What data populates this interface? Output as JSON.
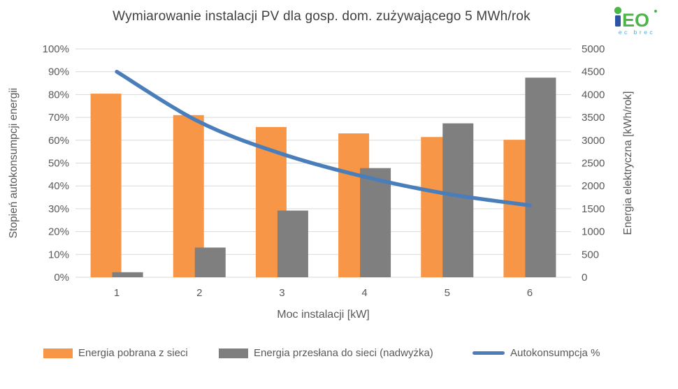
{
  "page": {
    "title": "Wymiarowanie instalacji PV dla gosp. dom. zużywającego 5 MWh/rok"
  },
  "logo": {
    "eo": "EO",
    "subtext": "ec brec",
    "blue": "#2B55A2",
    "green": "#4CB648",
    "subtext_color": "#4FA8D8"
  },
  "colors": {
    "gridline": "#D9D9D9",
    "axis_text": "#595959",
    "title_text": "#404040",
    "background": "#FFFFFF"
  },
  "chart_data": {
    "type": "bar",
    "subtype": "clustered-bars-with-smooth-line-combo",
    "title": "Wymiarowanie instalacji PV dla gosp. dom. zużywającego 5 MWh/rok",
    "categories": [
      "1",
      "2",
      "3",
      "4",
      "5",
      "6"
    ],
    "xlabel": "Moc instalacji [kW]",
    "grid": true,
    "legend_position": "bottom",
    "y_left": {
      "label": "Stopień autokonsumpcji energii",
      "min": 0,
      "max": 100,
      "step": 10,
      "unit": "%"
    },
    "y_right": {
      "label": "Energia elektryczna [kWh/rok]",
      "min": 0,
      "max": 5000,
      "step": 500,
      "unit": "kWh/rok"
    },
    "series": [
      {
        "name": "Energia pobrana z sieci",
        "type": "bar",
        "axis": "right",
        "color": "#F79646",
        "values": [
          4020,
          3550,
          3290,
          3150,
          3070,
          3010
        ]
      },
      {
        "name": "Energia przesłana do sieci (nadwyżka)",
        "type": "bar",
        "axis": "right",
        "color": "#7F7F7F",
        "values": [
          110,
          650,
          1460,
          2390,
          3370,
          4370
        ]
      },
      {
        "name": "Autokonsumpcja %",
        "type": "line",
        "axis": "left",
        "color": "#4A7EBB",
        "values": [
          90,
          68,
          54,
          44,
          36.5,
          31.5
        ]
      }
    ]
  }
}
